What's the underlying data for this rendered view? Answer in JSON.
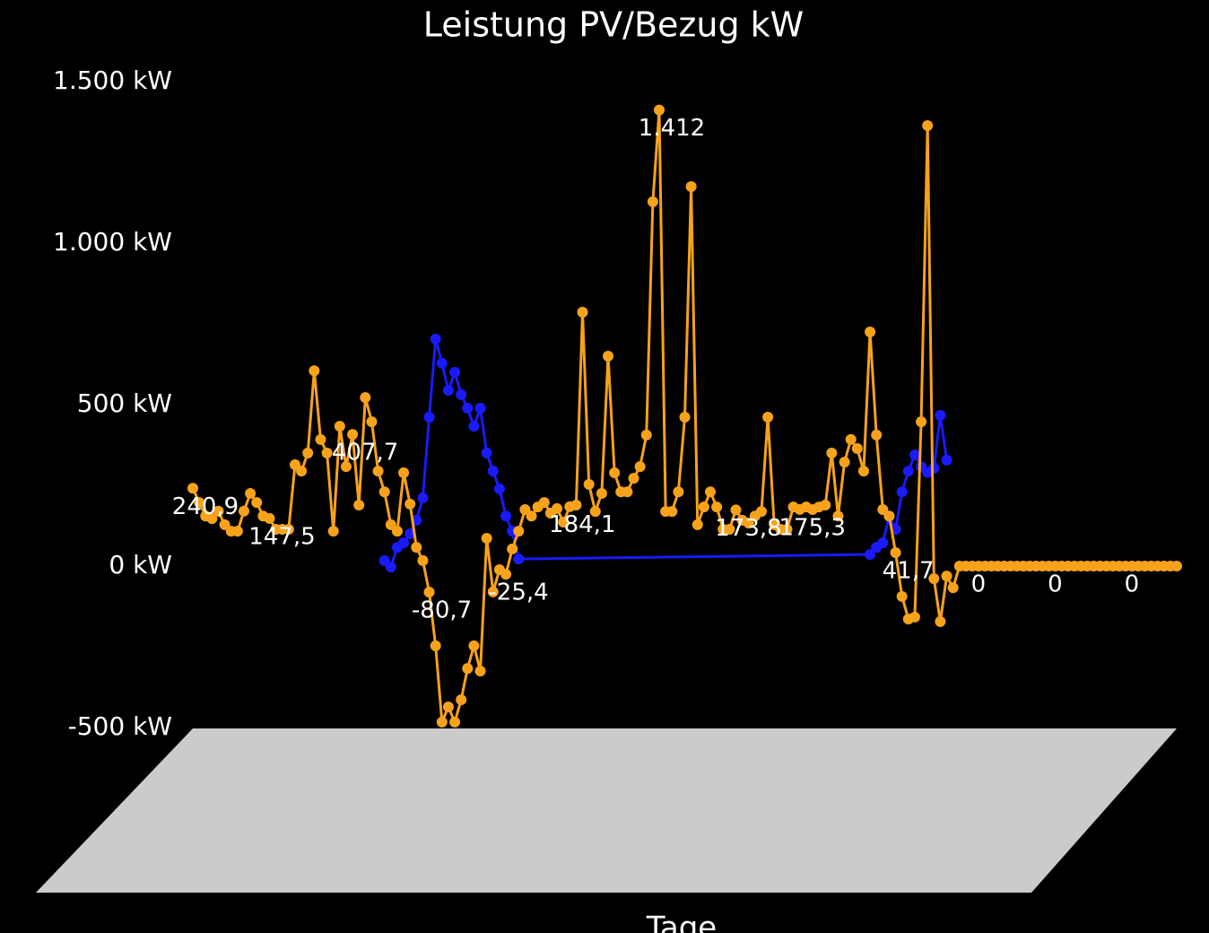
{
  "chart_data": {
    "type": "line",
    "title": "Leistung PV/Bezug kW",
    "x_label": "Tage",
    "ylim": [
      -500,
      1500
    ],
    "yticks": [
      {
        "value": -500,
        "label": "-500 kW"
      },
      {
        "value": 0,
        "label": "0 kW"
      },
      {
        "value": 500,
        "label": "500 kW"
      },
      {
        "value": 1000,
        "label": "1.000 kW"
      },
      {
        "value": 1500,
        "label": "1.500 kW"
      }
    ],
    "grid": false,
    "span_gaps": true,
    "series": [
      {
        "color": "#1a1aff",
        "values": [
          null,
          null,
          null,
          null,
          null,
          null,
          null,
          null,
          null,
          null,
          null,
          null,
          null,
          null,
          null,
          null,
          null,
          null,
          null,
          null,
          null,
          null,
          null,
          null,
          null,
          null,
          null,
          null,
          null,
          null,
          17,
          -3,
          58,
          72,
          100,
          142,
          211,
          461,
          703,
          628,
          544,
          600,
          531,
          489,
          433,
          489,
          350,
          294,
          239,
          155,
          108,
          22,
          null,
          null,
          null,
          null,
          null,
          null,
          null,
          null,
          null,
          null,
          null,
          null,
          null,
          null,
          null,
          null,
          null,
          null,
          null,
          null,
          null,
          null,
          null,
          null,
          null,
          null,
          null,
          null,
          null,
          null,
          null,
          null,
          null,
          null,
          null,
          null,
          null,
          null,
          null,
          null,
          null,
          null,
          null,
          null,
          null,
          null,
          null,
          null,
          null,
          null,
          null,
          null,
          null,
          null,
          36,
          58,
          72,
          155,
          114,
          230,
          294,
          344,
          308,
          290,
          303,
          467,
          328,
          null,
          null,
          null,
          null,
          null,
          null,
          null,
          null,
          null,
          null,
          null,
          null,
          null,
          null,
          null,
          null,
          null,
          null,
          null,
          null,
          null,
          null,
          null,
          null,
          null,
          null,
          null,
          null,
          null,
          null,
          null,
          null,
          null,
          null,
          null,
          null
        ]
      },
      {
        "color": "#f7a21b",
        "values": [
          240.9,
          197,
          155,
          147,
          170,
          128,
          108,
          108,
          170,
          225,
          197,
          155,
          147.5,
          114,
          114,
          114,
          314,
          294,
          350,
          605,
          392,
          350,
          108,
          433,
          308,
          407.7,
          189,
          522,
          447,
          294,
          230,
          128,
          108,
          289,
          192,
          58,
          17,
          -80.7,
          -247,
          -483,
          -436,
          -483,
          -414,
          -317,
          -247,
          -325,
          86,
          -80,
          -11,
          -25.4,
          53,
          108,
          175,
          155,
          183,
          197,
          164,
          178,
          136,
          184.1,
          189,
          786,
          253,
          169,
          225,
          650,
          289,
          230,
          230,
          272,
          308,
          406,
          1128,
          1412,
          169,
          169,
          230,
          461,
          1175,
          128,
          183,
          230,
          183,
          114,
          114,
          173.8,
          142,
          133,
          155,
          169,
          461,
          128,
          114,
          114,
          183,
          175.3,
          183,
          175,
          183,
          189,
          350,
          155,
          322,
          392,
          364,
          294,
          725,
          406,
          175,
          155,
          41.7,
          -94,
          -164,
          -158,
          447,
          1364,
          -39,
          -172,
          -31,
          -67,
          0,
          0,
          0,
          0,
          0,
          0,
          0,
          0,
          0,
          0,
          0,
          0,
          0,
          0,
          0,
          0,
          0,
          0,
          0,
          0,
          0,
          0,
          0,
          0,
          0,
          0,
          0,
          0,
          0,
          0,
          0,
          0,
          0,
          0,
          0
        ],
        "value_labels": [
          "240,9",
          null,
          null,
          null,
          null,
          null,
          null,
          null,
          null,
          null,
          null,
          null,
          "147,5",
          null,
          null,
          null,
          null,
          null,
          null,
          null,
          null,
          null,
          null,
          null,
          null,
          "407,7",
          null,
          null,
          null,
          null,
          null,
          null,
          null,
          null,
          null,
          null,
          null,
          "-80,7",
          null,
          null,
          null,
          null,
          null,
          null,
          null,
          null,
          null,
          null,
          null,
          "-25,4",
          null,
          null,
          null,
          null,
          null,
          null,
          null,
          null,
          null,
          "184,1",
          null,
          null,
          null,
          null,
          null,
          null,
          null,
          null,
          null,
          null,
          null,
          null,
          null,
          "1.412",
          null,
          null,
          null,
          null,
          null,
          null,
          null,
          null,
          null,
          null,
          null,
          "173,8",
          null,
          null,
          null,
          null,
          null,
          null,
          null,
          null,
          null,
          "175,3",
          null,
          null,
          null,
          null,
          null,
          null,
          null,
          null,
          null,
          null,
          null,
          null,
          null,
          null,
          "41,7",
          null,
          null,
          null,
          null,
          null,
          null,
          null,
          null,
          null,
          null,
          "0",
          null,
          null,
          null,
          null,
          null,
          null,
          null,
          null,
          null,
          null,
          null,
          "0",
          null,
          null,
          null,
          null,
          null,
          null,
          null,
          null,
          null,
          null,
          null,
          "0",
          null,
          null,
          null,
          null,
          null,
          null,
          null,
          null,
          null
        ]
      }
    ]
  }
}
